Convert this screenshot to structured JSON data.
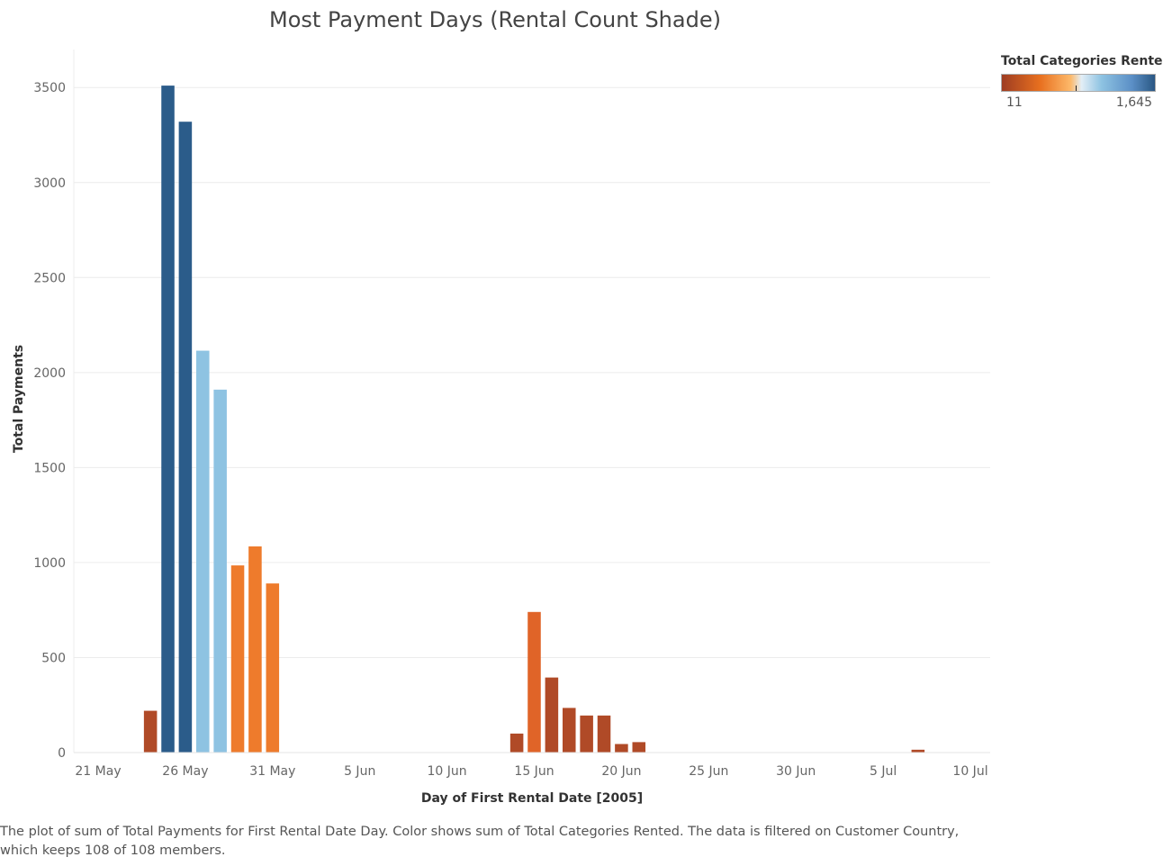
{
  "chart_data": {
    "type": "bar",
    "title": "Most Payment Days (Rental Count Shade)",
    "xlabel": "Day of First Rental Date [2005]",
    "ylabel": "Total Payments",
    "ylim": [
      0,
      3700
    ],
    "yticks": [
      0,
      500,
      1000,
      1500,
      2000,
      2500,
      3000,
      3500
    ],
    "grid": true,
    "x_tick_labels": [
      "21 May",
      "26 May",
      "31 May",
      "5 Jun",
      "10 Jun",
      "15 Jun",
      "20 Jun",
      "25 Jun",
      "30 Jun",
      "5 Jul",
      "10 Jul"
    ],
    "x_tick_dates": [
      "2005-05-21",
      "2005-05-26",
      "2005-05-31",
      "2005-06-05",
      "2005-06-10",
      "2005-06-15",
      "2005-06-20",
      "2005-06-25",
      "2005-06-30",
      "2005-07-05",
      "2005-07-10"
    ],
    "x_range": [
      "2005-05-21",
      "2005-07-10"
    ],
    "bars": [
      {
        "date": "2005-05-24",
        "value": 220,
        "color": "#b04a27"
      },
      {
        "date": "2005-05-25",
        "value": 3510,
        "color": "#2b5c8a"
      },
      {
        "date": "2005-05-26",
        "value": 3320,
        "color": "#2b5c8a"
      },
      {
        "date": "2005-05-27",
        "value": 2115,
        "color": "#8ec3e2"
      },
      {
        "date": "2005-05-28",
        "value": 1910,
        "color": "#8ec3e2"
      },
      {
        "date": "2005-05-29",
        "value": 985,
        "color": "#ee7b2c"
      },
      {
        "date": "2005-05-30",
        "value": 1085,
        "color": "#ee7b2c"
      },
      {
        "date": "2005-05-31",
        "value": 890,
        "color": "#ee7b2c"
      },
      {
        "date": "2005-06-14",
        "value": 100,
        "color": "#b04a27"
      },
      {
        "date": "2005-06-15",
        "value": 740,
        "color": "#e06428"
      },
      {
        "date": "2005-06-16",
        "value": 395,
        "color": "#b04a27"
      },
      {
        "date": "2005-06-17",
        "value": 235,
        "color": "#b04a27"
      },
      {
        "date": "2005-06-18",
        "value": 195,
        "color": "#b04a27"
      },
      {
        "date": "2005-06-19",
        "value": 195,
        "color": "#b04a27"
      },
      {
        "date": "2005-06-20",
        "value": 45,
        "color": "#b04a27"
      },
      {
        "date": "2005-06-21",
        "value": 55,
        "color": "#b04a27"
      },
      {
        "date": "2005-07-07",
        "value": 15,
        "color": "#b04a27"
      }
    ],
    "legend": {
      "title": "Total Categories Rented",
      "min_label": "11",
      "max_label": "1,645",
      "position": "top-right",
      "colors": [
        "#9e3d22",
        "#e8701f",
        "#fdb96a",
        "#e3eef6",
        "#8ec3e2",
        "#2a5783"
      ]
    }
  },
  "caption": "The plot of sum of Total Payments for First Rental Date Day.  Color shows sum of Total Categories Rented. The data is filtered on Customer Country, which keeps 108 of 108 members."
}
